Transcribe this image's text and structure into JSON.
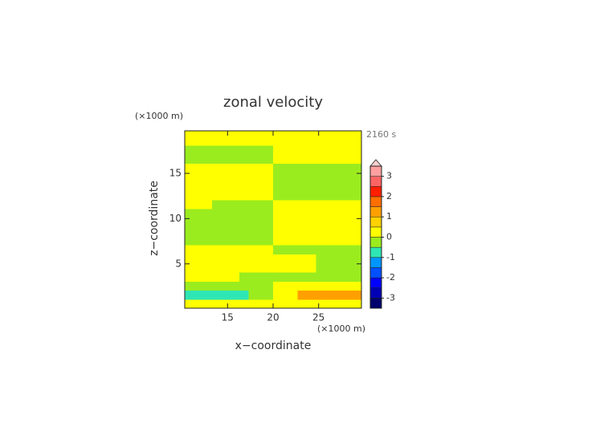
{
  "chart_data": {
    "type": "contour",
    "title": "zonal velocity",
    "time_label": "2160 s",
    "xlabel": "x−coordinate",
    "ylabel": "z−coordinate",
    "x_unit": "(×1000 m)",
    "y_unit": "(×1000 m)",
    "xlim": [
      10.3,
      29.7
    ],
    "ylim": [
      0.1,
      19.7
    ],
    "xticks": [
      15,
      20,
      25
    ],
    "yticks": [
      5,
      10,
      15
    ],
    "x": [
      10.8,
      11.8,
      12.8,
      13.8,
      14.8,
      15.8,
      16.8,
      17.8,
      18.8,
      19.8,
      20.2,
      21.2,
      22.2,
      23.2,
      24.2,
      25.2,
      26.2,
      27.2,
      28.2,
      29.2
    ],
    "y": [
      0.6,
      1.6,
      2.6,
      3.6,
      4.6,
      5.6,
      6.6,
      7.6,
      8.6,
      9.6,
      10.6,
      11.6,
      12.6,
      13.6,
      14.6,
      15.6,
      16.6,
      17.6,
      18.6,
      19.6
    ],
    "z": [
      [
        0.25,
        0.25,
        0.25,
        0.25,
        0.25,
        0.25,
        0.25,
        0.25,
        0.25,
        0.25,
        0.25,
        0.25,
        0.25,
        0.25,
        0.25,
        0.25,
        0.25,
        0.25,
        0.25,
        0.25
      ],
      [
        -0.75,
        -0.75,
        -0.75,
        -0.75,
        -0.75,
        -0.75,
        -0.75,
        -0.25,
        -0.25,
        -0.25,
        0.25,
        0.25,
        0.25,
        1.25,
        1.25,
        1.25,
        1.25,
        1.25,
        1.25,
        1.25
      ],
      [
        -0.25,
        -0.25,
        -0.25,
        -0.25,
        -0.25,
        -0.25,
        -0.25,
        -0.25,
        -0.25,
        -0.25,
        0.25,
        0.25,
        0.25,
        0.25,
        0.25,
        0.25,
        0.25,
        0.25,
        0.25,
        0.25
      ],
      [
        0.25,
        0.25,
        0.25,
        0.25,
        0.25,
        0.25,
        -0.25,
        -0.25,
        -0.25,
        -0.25,
        -0.25,
        -0.25,
        -0.25,
        -0.25,
        -0.25,
        -0.25,
        -0.25,
        -0.25,
        -0.25,
        -0.25
      ],
      [
        0.25,
        0.25,
        0.25,
        0.25,
        0.25,
        0.25,
        0.25,
        0.25,
        0.25,
        0.25,
        0.25,
        0.25,
        0.25,
        0.25,
        0.25,
        -0.25,
        -0.25,
        -0.25,
        -0.25,
        -0.25
      ],
      [
        0.25,
        0.25,
        0.25,
        0.25,
        0.25,
        0.25,
        0.25,
        0.25,
        0.25,
        0.25,
        0.25,
        0.25,
        0.25,
        0.25,
        0.25,
        -0.25,
        -0.25,
        -0.25,
        -0.25,
        -0.25
      ],
      [
        0.25,
        0.25,
        0.25,
        0.25,
        0.25,
        0.25,
        0.25,
        0.25,
        0.25,
        0.25,
        -0.25,
        -0.25,
        -0.25,
        -0.25,
        -0.25,
        -0.25,
        -0.25,
        -0.25,
        -0.25,
        -0.25
      ],
      [
        -0.25,
        -0.25,
        -0.25,
        -0.25,
        -0.25,
        -0.25,
        -0.25,
        -0.25,
        -0.25,
        -0.25,
        0.25,
        0.25,
        0.25,
        0.25,
        0.25,
        0.25,
        0.25,
        0.25,
        0.25,
        0.25
      ],
      [
        -0.25,
        -0.25,
        -0.25,
        -0.25,
        -0.25,
        -0.25,
        -0.25,
        -0.25,
        -0.25,
        -0.25,
        0.25,
        0.25,
        0.25,
        0.25,
        0.25,
        0.25,
        0.25,
        0.25,
        0.25,
        0.25
      ],
      [
        -0.25,
        -0.25,
        -0.25,
        -0.25,
        -0.25,
        -0.25,
        -0.25,
        -0.25,
        -0.25,
        -0.25,
        0.25,
        0.25,
        0.25,
        0.25,
        0.25,
        0.25,
        0.25,
        0.25,
        0.25,
        0.25
      ],
      [
        -0.25,
        -0.25,
        -0.25,
        -0.25,
        -0.25,
        -0.25,
        -0.25,
        -0.25,
        -0.25,
        -0.25,
        0.25,
        0.25,
        0.25,
        0.25,
        0.25,
        0.25,
        0.25,
        0.25,
        0.25,
        0.25
      ],
      [
        0.25,
        0.25,
        0.25,
        -0.25,
        -0.25,
        -0.25,
        -0.25,
        -0.25,
        -0.25,
        -0.25,
        0.25,
        0.25,
        0.25,
        0.25,
        0.25,
        0.25,
        0.25,
        0.25,
        0.25,
        0.25
      ],
      [
        0.25,
        0.25,
        0.25,
        0.25,
        0.25,
        0.25,
        0.25,
        0.25,
        0.25,
        0.25,
        -0.25,
        -0.25,
        -0.25,
        -0.25,
        -0.25,
        -0.25,
        -0.25,
        -0.25,
        -0.25,
        -0.25
      ],
      [
        0.25,
        0.25,
        0.25,
        0.25,
        0.25,
        0.25,
        0.25,
        0.25,
        0.25,
        0.25,
        -0.25,
        -0.25,
        -0.25,
        -0.25,
        -0.25,
        -0.25,
        -0.25,
        -0.25,
        -0.25,
        -0.25
      ],
      [
        0.25,
        0.25,
        0.25,
        0.25,
        0.25,
        0.25,
        0.25,
        0.25,
        0.25,
        0.25,
        -0.25,
        -0.25,
        -0.25,
        -0.25,
        -0.25,
        -0.25,
        -0.25,
        -0.25,
        -0.25,
        -0.25
      ],
      [
        0.25,
        0.25,
        0.25,
        0.25,
        0.25,
        0.25,
        0.25,
        0.25,
        0.25,
        0.25,
        -0.25,
        -0.25,
        -0.25,
        -0.25,
        -0.25,
        -0.25,
        -0.25,
        -0.25,
        -0.25,
        -0.25
      ],
      [
        -0.25,
        -0.25,
        -0.25,
        -0.25,
        -0.25,
        -0.25,
        -0.25,
        -0.25,
        -0.25,
        -0.25,
        0.25,
        0.25,
        0.25,
        0.25,
        0.25,
        0.25,
        0.25,
        0.25,
        0.25,
        0.25
      ],
      [
        -0.25,
        -0.25,
        -0.25,
        -0.25,
        -0.25,
        -0.25,
        -0.25,
        -0.25,
        -0.25,
        -0.25,
        0.25,
        0.25,
        0.25,
        0.25,
        0.25,
        0.25,
        0.25,
        0.25,
        0.25,
        0.25
      ],
      [
        0.25,
        0.25,
        0.25,
        0.25,
        0.25,
        0.25,
        0.25,
        0.25,
        0.25,
        0.25,
        0.25,
        0.25,
        0.25,
        0.25,
        0.25,
        0.25,
        0.25,
        0.25,
        0.25,
        0.25
      ],
      [
        0.25,
        0.25,
        0.25,
        0.25,
        0.25,
        0.25,
        0.25,
        0.25,
        0.25,
        0.25,
        0.25,
        0.25,
        0.25,
        0.25,
        0.25,
        0.25,
        0.25,
        0.25,
        0.25,
        0.25
      ]
    ],
    "colorbar": {
      "levels": [
        -3.5,
        -3,
        -2.5,
        -2,
        -1.5,
        -1,
        -0.5,
        0,
        0.5,
        1,
        1.5,
        2,
        2.5,
        3,
        3.5
      ],
      "colors": [
        "#00006e",
        "#0000b4",
        "#0000ff",
        "#0050ff",
        "#0096ff",
        "#2ee6b4",
        "#9bec1e",
        "#ffff00",
        "#ffd200",
        "#ffa000",
        "#ff6e00",
        "#ff1e00",
        "#ff6464",
        "#ffa0a0"
      ],
      "extend_color": "#ffd0d0",
      "ticks": [
        -3,
        -2,
        -1,
        0,
        1,
        2,
        3
      ]
    }
  }
}
